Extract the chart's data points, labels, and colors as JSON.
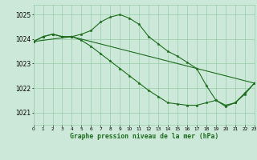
{
  "background_color": "#cce8d8",
  "grid_color": "#99ccaa",
  "line_color": "#1e6b1e",
  "title": "Graphe pression niveau de la mer (hPa)",
  "xlim": [
    0,
    23
  ],
  "ylim": [
    1020.5,
    1025.4
  ],
  "yticks": [
    1021,
    1022,
    1023,
    1024,
    1025
  ],
  "xticks": [
    0,
    1,
    2,
    3,
    4,
    5,
    6,
    7,
    8,
    9,
    10,
    11,
    12,
    13,
    14,
    15,
    16,
    17,
    18,
    19,
    20,
    21,
    22,
    23
  ],
  "series1_x": [
    0,
    1,
    2,
    3,
    4,
    5,
    6,
    7,
    8,
    9,
    10,
    11,
    12,
    13,
    14,
    15,
    16,
    17,
    18,
    19,
    20,
    21,
    22,
    23
  ],
  "series1_y": [
    1023.9,
    1024.1,
    1024.2,
    1024.1,
    1024.1,
    1024.2,
    1024.35,
    1024.7,
    1024.9,
    1025.0,
    1024.85,
    1024.6,
    1024.1,
    1023.8,
    1023.5,
    1023.3,
    1023.05,
    1022.8,
    1022.1,
    1021.5,
    1021.3,
    1021.4,
    1021.8,
    1022.2
  ],
  "series2_x": [
    0,
    1,
    2,
    3,
    4,
    5,
    6,
    7,
    8,
    9,
    10,
    11,
    12,
    13,
    14,
    15,
    16,
    17,
    18,
    19,
    20,
    21,
    22,
    23
  ],
  "series2_y": [
    1023.9,
    1024.1,
    1024.2,
    1024.1,
    1024.1,
    1023.95,
    1023.7,
    1023.4,
    1023.1,
    1022.8,
    1022.5,
    1022.2,
    1021.9,
    1021.65,
    1021.4,
    1021.35,
    1021.3,
    1021.3,
    1021.4,
    1021.5,
    1021.25,
    1021.4,
    1021.75,
    1022.2
  ],
  "series3_x": [
    0,
    4,
    23
  ],
  "series3_y": [
    1023.9,
    1024.1,
    1022.2
  ]
}
